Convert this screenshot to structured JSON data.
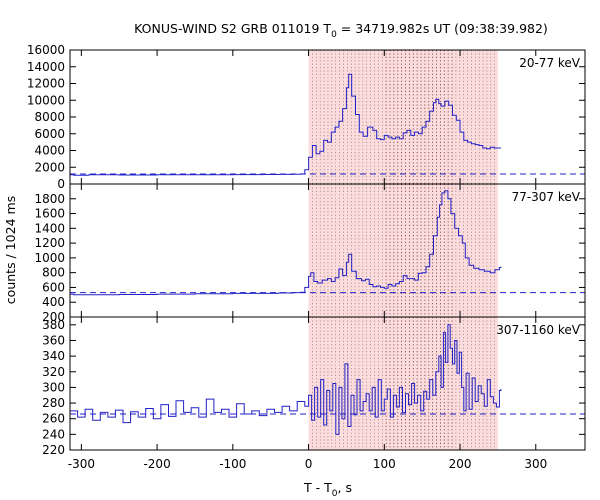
{
  "chart_data": {
    "type": "line",
    "title": {
      "prefix": "KONUS-WIND S2 GRB 011019 T",
      "sub": "0",
      "suffix": " = 34719.982s UT (09:38:39.982)"
    },
    "xlabel": {
      "main": "T - T",
      "sub": "0",
      "suffix": ", s"
    },
    "ylabel": "counts / 1024 ms",
    "x_range": [
      -315,
      365
    ],
    "x_ticks": [
      -300,
      -200,
      -100,
      0,
      100,
      200,
      300
    ],
    "highlight_region": {
      "x_start": 0,
      "x_end": 250,
      "dense_start": 100,
      "dense_end": 190,
      "fill": "#fcdcdc"
    },
    "dotted_line_spacing_s": 5.12,
    "series_color": "#2020c8",
    "panels": [
      {
        "band": "20-77 keV",
        "ylim": [
          0,
          16000
        ],
        "y_ticks": [
          0,
          2000,
          4000,
          6000,
          8000,
          10000,
          12000,
          14000,
          16000
        ],
        "background": 1200,
        "x": [
          -315,
          -310,
          -290,
          -250,
          -200,
          -150,
          -100,
          -60,
          -40,
          -20,
          -10,
          -5,
          0,
          5,
          10,
          15,
          20,
          25,
          30,
          35,
          40,
          45,
          50,
          53,
          57,
          62,
          67,
          72,
          78,
          85,
          90,
          95,
          100,
          105,
          110,
          115,
          120,
          125,
          130,
          135,
          140,
          145,
          150,
          155,
          160,
          165,
          168,
          172,
          175,
          180,
          185,
          190,
          195,
          200,
          205,
          210,
          215,
          220,
          225,
          230,
          235,
          240,
          245,
          250,
          254
        ],
        "y": [
          1100,
          1050,
          1100,
          1080,
          1100,
          1100,
          1120,
          1130,
          1150,
          1170,
          1200,
          1700,
          3200,
          4600,
          3600,
          3900,
          5200,
          5000,
          6200,
          6800,
          7500,
          9000,
          11500,
          13100,
          10500,
          8300,
          6200,
          5700,
          6800,
          6400,
          5400,
          5300,
          5800,
          5600,
          5400,
          5600,
          5400,
          6100,
          6400,
          5800,
          6200,
          6000,
          6800,
          7500,
          8700,
          9700,
          10100,
          9600,
          9300,
          9900,
          9400,
          8200,
          7600,
          6200,
          5200,
          5000,
          4800,
          4700,
          4600,
          4300,
          4200,
          4400,
          4300,
          4300,
          4300
        ]
      },
      {
        "band": "77-307 keV",
        "ylim": [
          200,
          2000
        ],
        "y_ticks": [
          200,
          400,
          600,
          800,
          1000,
          1200,
          1400,
          1600,
          1800
        ],
        "background": 530,
        "x": [
          -315,
          -310,
          -290,
          -250,
          -200,
          -150,
          -100,
          -60,
          -40,
          -20,
          -10,
          -5,
          0,
          3,
          7,
          12,
          18,
          25,
          30,
          35,
          40,
          45,
          50,
          53,
          57,
          63,
          70,
          75,
          80,
          85,
          90,
          95,
          100,
          105,
          110,
          115,
          120,
          125,
          130,
          135,
          140,
          145,
          150,
          155,
          160,
          165,
          170,
          173,
          176,
          180,
          184,
          188,
          193,
          198,
          203,
          207,
          212,
          218,
          225,
          232,
          240,
          246,
          252,
          254
        ],
        "y": [
          510,
          500,
          500,
          505,
          510,
          515,
          520,
          520,
          525,
          530,
          535,
          600,
          750,
          800,
          680,
          660,
          700,
          720,
          680,
          730,
          850,
          760,
          940,
          1050,
          820,
          720,
          690,
          710,
          640,
          610,
          620,
          600,
          590,
          640,
          620,
          650,
          680,
          760,
          720,
          720,
          700,
          790,
          800,
          880,
          1050,
          1300,
          1550,
          1720,
          1880,
          1910,
          1800,
          1600,
          1400,
          1300,
          1200,
          1000,
          900,
          860,
          840,
          820,
          800,
          840,
          870,
          880
        ]
      },
      {
        "band": "307-1160 keV",
        "ylim": [
          220,
          390
        ],
        "y_ticks": [
          220,
          240,
          260,
          280,
          300,
          320,
          340,
          360,
          380
        ],
        "background": 266,
        "x": [
          -315,
          -305,
          -295,
          -285,
          -275,
          -265,
          -255,
          -245,
          -235,
          -225,
          -215,
          -205,
          -195,
          -185,
          -175,
          -165,
          -155,
          -145,
          -135,
          -125,
          -115,
          -105,
          -95,
          -85,
          -75,
          -65,
          -55,
          -45,
          -35,
          -25,
          -15,
          -5,
          0,
          4,
          8,
          12,
          16,
          20,
          24,
          28,
          32,
          36,
          40,
          44,
          48,
          52,
          56,
          60,
          64,
          68,
          72,
          76,
          80,
          84,
          88,
          92,
          96,
          100,
          104,
          108,
          112,
          116,
          120,
          124,
          128,
          132,
          136,
          140,
          144,
          148,
          152,
          156,
          160,
          164,
          168,
          172,
          175,
          178,
          181,
          184,
          187,
          190,
          193,
          196,
          199,
          202,
          205,
          208,
          212,
          216,
          220,
          224,
          228,
          232,
          236,
          240,
          244,
          248,
          252,
          254
        ],
        "y": [
          270,
          262,
          272,
          258,
          268,
          262,
          271,
          255,
          269,
          262,
          273,
          260,
          278,
          263,
          283,
          268,
          274,
          262,
          285,
          268,
          272,
          262,
          279,
          266,
          270,
          264,
          272,
          268,
          276,
          270,
          282,
          276,
          290,
          258,
          300,
          262,
          310,
          252,
          296,
          270,
          305,
          240,
          300,
          260,
          330,
          250,
          290,
          265,
          310,
          270,
          282,
          292,
          270,
          300,
          262,
          310,
          270,
          285,
          298,
          262,
          290,
          275,
          300,
          268,
          292,
          278,
          305,
          280,
          290,
          270,
          295,
          285,
          310,
          290,
          320,
          340,
          300,
          370,
          332,
          380,
          350,
          330,
          360,
          318,
          345,
          300,
          270,
          318,
          272,
          312,
          282,
          302,
          292,
          276,
          310,
          288,
          280,
          275,
          296,
          298
        ]
      }
    ]
  }
}
